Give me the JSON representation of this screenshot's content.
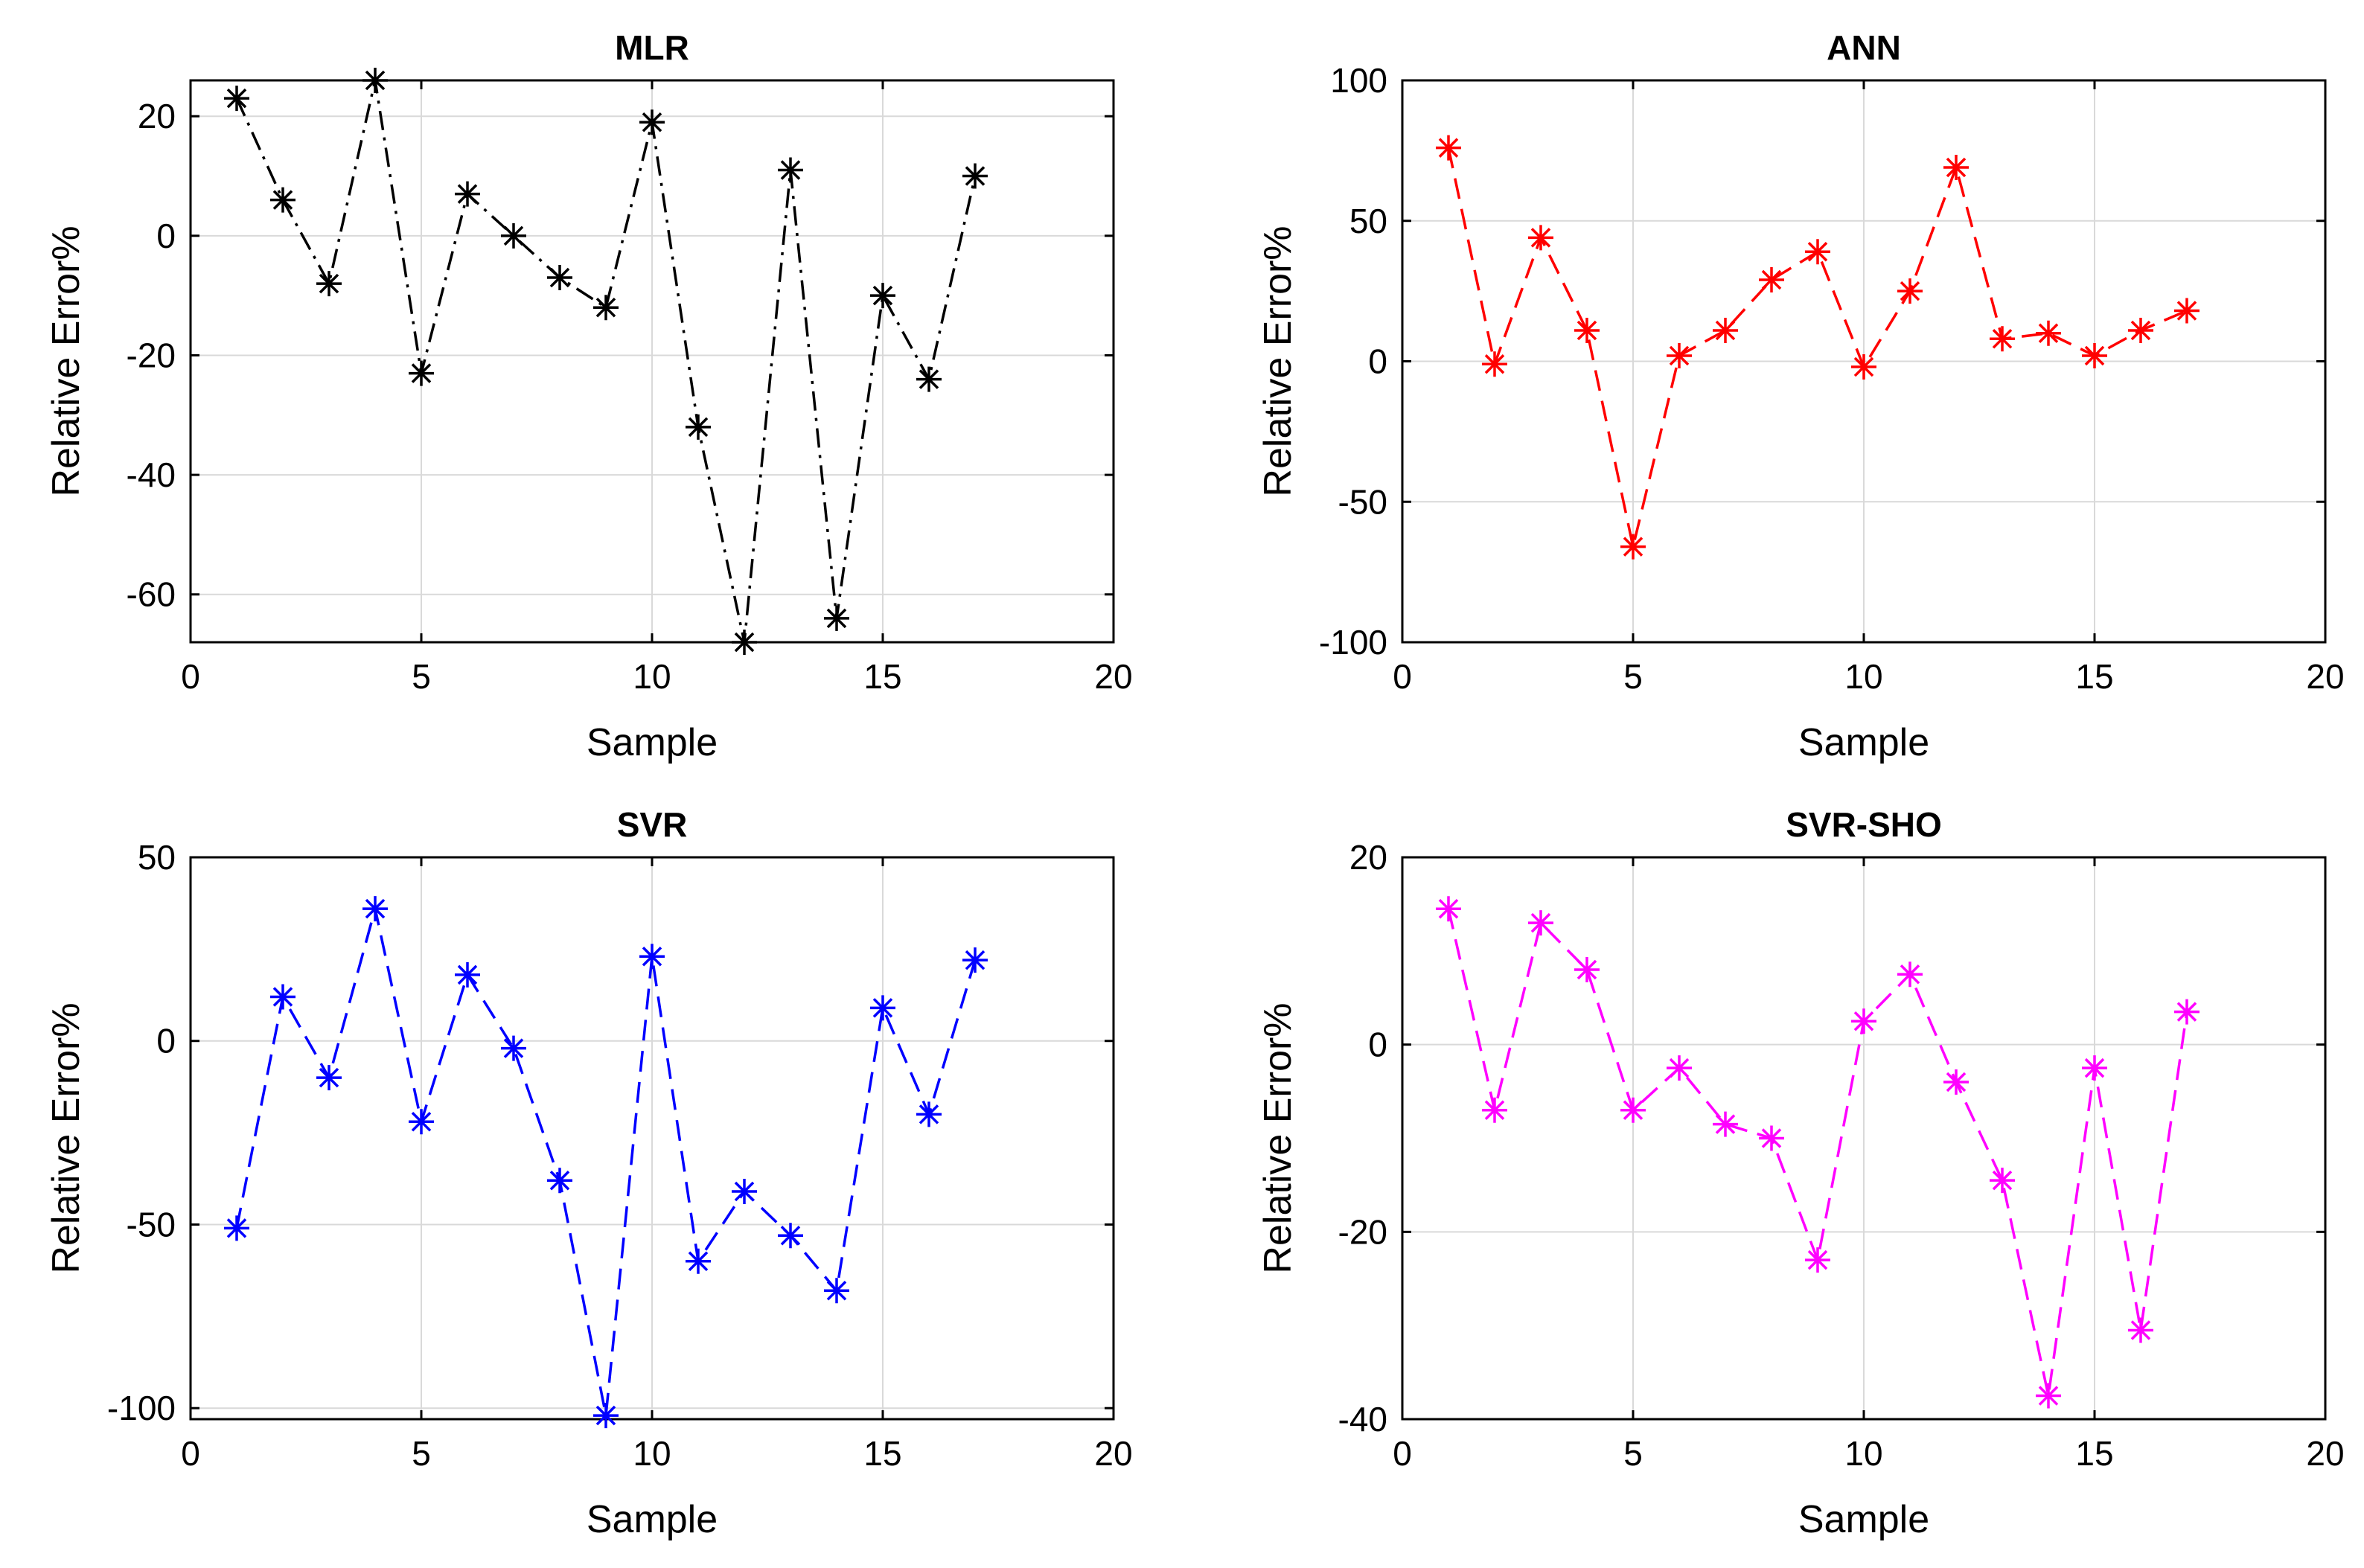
{
  "figure": {
    "panels": [
      {
        "title": "MLR",
        "xlabel": "Sample",
        "ylabel": "Relative Error%",
        "color": "#000000",
        "xlim": [
          0,
          20
        ],
        "ylim": [
          -68,
          26
        ],
        "xticks": [
          0,
          5,
          10,
          15,
          20
        ],
        "yticks": [
          -60,
          -40,
          -20,
          0,
          20
        ]
      },
      {
        "title": "ANN",
        "xlabel": "Sample",
        "ylabel": "Relative Error%",
        "color": "#ff0000",
        "xlim": [
          0,
          20
        ],
        "ylim": [
          -100,
          100
        ],
        "xticks": [
          0,
          5,
          10,
          15,
          20
        ],
        "yticks": [
          -100,
          -50,
          0,
          50,
          100
        ]
      },
      {
        "title": "SVR",
        "xlabel": "Sample",
        "ylabel": "Relative Error%",
        "color": "#0000ff",
        "xlim": [
          0,
          20
        ],
        "ylim": [
          -103,
          50
        ],
        "xticks": [
          0,
          5,
          10,
          15,
          20
        ],
        "yticks": [
          -100,
          -50,
          0,
          50
        ]
      },
      {
        "title": "SVR-SHO",
        "xlabel": "Sample",
        "ylabel": "Relative Error%",
        "color": "#ff00ff",
        "xlim": [
          0,
          20
        ],
        "ylim": [
          -40,
          20
        ],
        "xticks": [
          0,
          5,
          10,
          15,
          20
        ],
        "yticks": [
          -40,
          -20,
          0,
          20
        ]
      }
    ]
  },
  "chart_data": [
    {
      "type": "line",
      "title": "MLR",
      "xlabel": "Sample",
      "ylabel": "Relative Error%",
      "grid": true,
      "line_style": "dash-dot",
      "marker": "asterisk",
      "xlim": [
        0,
        20
      ],
      "ylim": [
        -68,
        26
      ],
      "x": [
        1,
        2,
        3,
        4,
        5,
        6,
        7,
        8,
        9,
        10,
        11,
        12,
        13,
        14,
        15,
        16,
        17
      ],
      "y": [
        23,
        6,
        -8,
        26,
        -23,
        7,
        0,
        -7,
        -12,
        19,
        -32,
        -68,
        11,
        -64,
        -10,
        -24,
        10
      ]
    },
    {
      "type": "line",
      "title": "ANN",
      "xlabel": "Sample",
      "ylabel": "Relative Error%",
      "grid": true,
      "line_style": "dashed",
      "marker": "asterisk",
      "xlim": [
        0,
        20
      ],
      "ylim": [
        -100,
        100
      ],
      "x": [
        1,
        2,
        3,
        4,
        5,
        6,
        7,
        8,
        9,
        10,
        11,
        12,
        13,
        14,
        15,
        16,
        17
      ],
      "y": [
        76,
        -1,
        44,
        11,
        -66,
        2,
        11,
        29,
        39,
        -2,
        25,
        69,
        8,
        10,
        2,
        11,
        18
      ]
    },
    {
      "type": "line",
      "title": "SVR",
      "xlabel": "Sample",
      "ylabel": "Relative Error%",
      "grid": true,
      "line_style": "dashed",
      "marker": "asterisk",
      "xlim": [
        0,
        20
      ],
      "ylim": [
        -103,
        50
      ],
      "x": [
        1,
        2,
        3,
        4,
        5,
        6,
        7,
        8,
        9,
        10,
        11,
        12,
        13,
        14,
        15,
        16,
        17
      ],
      "y": [
        -51,
        12,
        -10,
        36,
        -22,
        18,
        -2,
        -38,
        -102,
        23,
        -60,
        -41,
        -53,
        -68,
        9,
        -20,
        22
      ]
    },
    {
      "type": "line",
      "title": "SVR-SHO",
      "xlabel": "Sample",
      "ylabel": "Relative Error%",
      "grid": true,
      "line_style": "dashed",
      "marker": "asterisk",
      "xlim": [
        0,
        20
      ],
      "ylim": [
        -40,
        20
      ],
      "x": [
        1,
        2,
        3,
        4,
        5,
        6,
        7,
        8,
        9,
        10,
        11,
        12,
        13,
        14,
        15,
        16,
        17
      ],
      "y": [
        14.5,
        -7,
        13,
        8,
        -7,
        -2.5,
        -8.5,
        -10,
        -23,
        2.5,
        7.5,
        -4,
        -14.5,
        -37.5,
        -2.5,
        -30.5,
        3.5
      ]
    }
  ]
}
